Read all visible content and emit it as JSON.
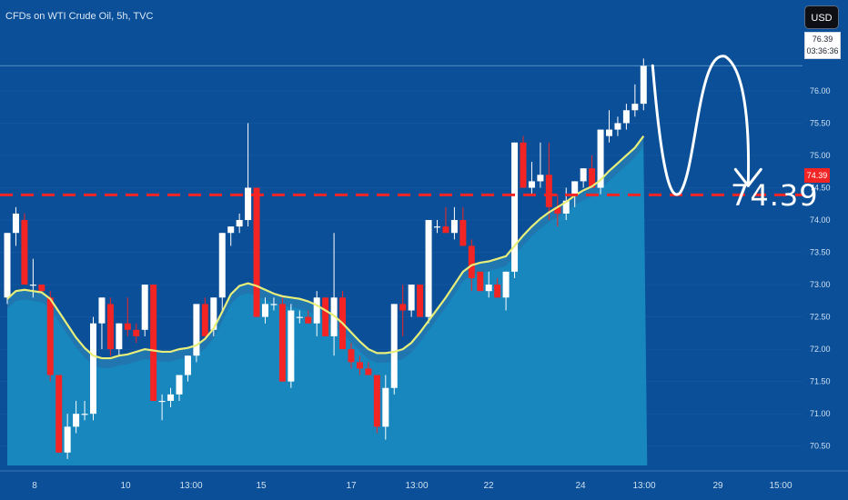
{
  "header": {
    "title": "CFDs on WTI Crude Oil, 5h, TVC",
    "currency_button": "USD"
  },
  "price_badge": {
    "price": "76.39",
    "countdown": "03:36:36"
  },
  "level_badge": "74.39",
  "annotation": {
    "label": "74.39"
  },
  "colors": {
    "background": "#0a4f97",
    "up_candle": "#ffffff",
    "down_candle": "#f32424",
    "support_line": "#f32424",
    "ma_line": "#e8ee7a",
    "area_fill": "#1a90c4"
  },
  "chart_data": {
    "type": "candlestick",
    "instrument": "CFDs on WTI Crude Oil",
    "interval": "5h",
    "ylim": [
      70.2,
      76.9
    ],
    "y_ticks": [
      "70.50",
      "71.00",
      "71.50",
      "72.00",
      "72.50",
      "73.00",
      "73.50",
      "74.00",
      "74.50",
      "75.00",
      "75.50",
      "76.00"
    ],
    "x_ticks": [
      "8",
      "10",
      "13:00",
      "15",
      "17",
      "13:00",
      "22",
      "24",
      "13:00",
      "29",
      "15:00"
    ],
    "horizontal_line": 74.39,
    "annotation_value": 74.39,
    "current_price": 76.39,
    "candles": [
      [
        72.8,
        73.8,
        72.7,
        73.8
      ],
      [
        73.8,
        74.2,
        73.6,
        74.1
      ],
      [
        74.0,
        74.1,
        73.0,
        73.0
      ],
      [
        73.0,
        73.4,
        72.8,
        73.0
      ],
      [
        73.0,
        73.0,
        72.9,
        72.9
      ],
      [
        72.8,
        72.9,
        71.5,
        71.6
      ],
      [
        71.6,
        71.6,
        70.4,
        70.4
      ],
      [
        70.4,
        71.0,
        70.3,
        70.8
      ],
      [
        70.8,
        71.2,
        70.7,
        71.0
      ],
      [
        71.0,
        71.2,
        70.9,
        71.0
      ],
      [
        71.0,
        72.5,
        70.9,
        72.4
      ],
      [
        72.4,
        72.8,
        72.0,
        72.8
      ],
      [
        72.7,
        72.8,
        71.9,
        72.0
      ],
      [
        72.0,
        72.4,
        71.9,
        72.4
      ],
      [
        72.4,
        72.8,
        72.2,
        72.3
      ],
      [
        72.3,
        72.4,
        72.1,
        72.2
      ],
      [
        72.3,
        73.0,
        72.2,
        73.0
      ],
      [
        73.0,
        73.0,
        71.2,
        71.2
      ],
      [
        71.2,
        71.3,
        70.9,
        71.2
      ],
      [
        71.2,
        71.4,
        71.1,
        71.3
      ],
      [
        71.3,
        71.6,
        71.2,
        71.6
      ],
      [
        71.6,
        71.9,
        71.5,
        71.9
      ],
      [
        71.9,
        72.7,
        71.8,
        72.7
      ],
      [
        72.7,
        72.8,
        72.2,
        72.2
      ],
      [
        72.3,
        72.8,
        72.2,
        72.8
      ],
      [
        72.8,
        73.8,
        72.6,
        73.8
      ],
      [
        73.8,
        73.9,
        73.6,
        73.9
      ],
      [
        73.9,
        74.1,
        73.8,
        74.0
      ],
      [
        74.0,
        75.5,
        73.9,
        74.5
      ],
      [
        74.5,
        74.5,
        72.5,
        72.5
      ],
      [
        72.5,
        72.8,
        72.4,
        72.7
      ],
      [
        72.7,
        72.8,
        72.6,
        72.7
      ],
      [
        72.7,
        72.8,
        71.5,
        71.5
      ],
      [
        71.5,
        72.7,
        71.4,
        72.6
      ],
      [
        72.5,
        72.6,
        72.4,
        72.5
      ],
      [
        72.5,
        72.6,
        72.4,
        72.4
      ],
      [
        72.4,
        72.9,
        72.2,
        72.8
      ],
      [
        72.8,
        72.8,
        72.2,
        72.2
      ],
      [
        72.2,
        73.8,
        71.9,
        72.8
      ],
      [
        72.8,
        72.9,
        72.0,
        72.0
      ],
      [
        72.0,
        72.1,
        71.7,
        71.8
      ],
      [
        71.8,
        71.9,
        71.6,
        71.7
      ],
      [
        71.7,
        71.8,
        71.6,
        71.6
      ],
      [
        71.6,
        71.6,
        70.7,
        70.8
      ],
      [
        70.8,
        71.6,
        70.6,
        71.4
      ],
      [
        71.4,
        72.7,
        71.3,
        72.7
      ],
      [
        72.7,
        73.0,
        72.2,
        72.6
      ],
      [
        72.6,
        73.0,
        72.5,
        73.0
      ],
      [
        73.0,
        73.0,
        72.5,
        72.5
      ],
      [
        72.5,
        74.0,
        72.4,
        74.0
      ],
      [
        73.9,
        74.0,
        73.8,
        73.9
      ],
      [
        73.9,
        74.2,
        73.8,
        73.8
      ],
      [
        73.8,
        74.2,
        73.7,
        74.0
      ],
      [
        74.0,
        74.2,
        73.6,
        73.6
      ],
      [
        73.6,
        73.7,
        72.9,
        73.1
      ],
      [
        73.2,
        73.2,
        72.9,
        72.9
      ],
      [
        72.9,
        73.2,
        72.8,
        73.0
      ],
      [
        73.0,
        73.1,
        72.8,
        72.8
      ],
      [
        72.8,
        73.2,
        72.6,
        73.2
      ],
      [
        73.2,
        75.2,
        73.1,
        75.2
      ],
      [
        75.2,
        75.3,
        74.5,
        74.5
      ],
      [
        74.5,
        74.9,
        74.4,
        74.6
      ],
      [
        74.6,
        75.2,
        74.5,
        74.7
      ],
      [
        74.7,
        75.2,
        74.0,
        74.2
      ],
      [
        74.2,
        74.4,
        73.9,
        74.1
      ],
      [
        74.1,
        74.5,
        74.0,
        74.3
      ],
      [
        74.4,
        74.6,
        74.2,
        74.6
      ],
      [
        74.6,
        74.8,
        74.5,
        74.8
      ],
      [
        74.8,
        75.0,
        74.5,
        74.5
      ],
      [
        74.5,
        75.4,
        74.4,
        75.4
      ],
      [
        75.3,
        75.7,
        75.2,
        75.4
      ],
      [
        75.4,
        75.6,
        75.3,
        75.5
      ],
      [
        75.5,
        75.8,
        75.4,
        75.7
      ],
      [
        75.7,
        76.1,
        75.6,
        75.8
      ],
      [
        75.8,
        76.5,
        75.7,
        76.39
      ]
    ],
    "moving_average": [
      72.78,
      72.9,
      72.92,
      72.9,
      72.88,
      72.78,
      72.58,
      72.38,
      72.18,
      72.02,
      71.9,
      71.86,
      71.86,
      71.9,
      71.92,
      71.96,
      72.0,
      71.98,
      71.96,
      71.96,
      72.0,
      72.02,
      72.06,
      72.16,
      72.32,
      72.58,
      72.85,
      72.98,
      73.02,
      72.98,
      72.92,
      72.86,
      72.82,
      72.8,
      72.78,
      72.74,
      72.68,
      72.6,
      72.52,
      72.4,
      72.26,
      72.12,
      72.0,
      71.94,
      71.94,
      71.96,
      72.0,
      72.1,
      72.26,
      72.44,
      72.62,
      72.8,
      73.0,
      73.2,
      73.3,
      73.34,
      73.36,
      73.4,
      73.44,
      73.6,
      73.76,
      73.9,
      74.02,
      74.12,
      74.2,
      74.28,
      74.38,
      74.46,
      74.52,
      74.62,
      74.76,
      74.88,
      75.0,
      75.12,
      75.3
    ],
    "projection": "curve up from 76.39 then down to 74.39"
  }
}
